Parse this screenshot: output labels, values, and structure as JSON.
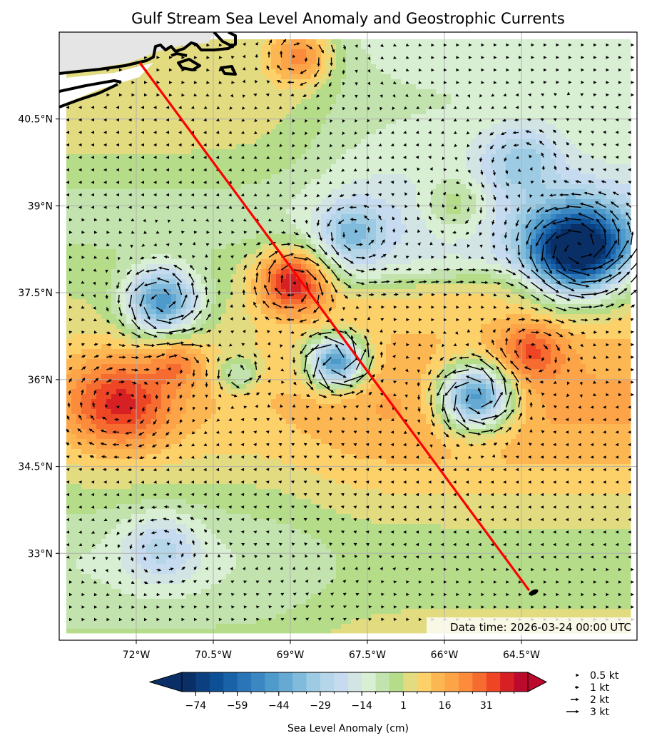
{
  "title": "Gulf Stream Sea Level Anomaly and Geostrophic Currents",
  "data_time_label": "Data time: 2026-03-24 00:00 UTC",
  "chart_data": {
    "type": "contour",
    "title": "Gulf Stream Sea Level Anomaly and Geostrophic Currents",
    "x_ticks": [
      {
        "value": -72,
        "label": "72°W"
      },
      {
        "value": -70.5,
        "label": "70.5°W"
      },
      {
        "value": -69,
        "label": "69°W"
      },
      {
        "value": -67.5,
        "label": "67.5°W"
      },
      {
        "value": -66,
        "label": "66°W"
      },
      {
        "value": -64.5,
        "label": "64.5°W"
      }
    ],
    "y_ticks": [
      {
        "value": 40.5,
        "label": "40.5°N"
      },
      {
        "value": 39,
        "label": "39°N"
      },
      {
        "value": 37.5,
        "label": "37.5°N"
      },
      {
        "value": 36,
        "label": "36°N"
      },
      {
        "value": 34.5,
        "label": "34.5°N"
      },
      {
        "value": 33,
        "label": "33°N"
      }
    ],
    "xlim": [
      -73.5,
      -62.25
    ],
    "ylim": [
      31.5,
      42.0
    ],
    "grid": true,
    "colorbar": {
      "label": "Sea Level Anomaly (cm)",
      "levels_min": -79,
      "levels_step": 5,
      "tick_labels": [
        "−74",
        "−59",
        "−44",
        "−29",
        "−14",
        "1",
        "16",
        "31"
      ],
      "tick_values": [
        -74,
        -59,
        -44,
        -29,
        -14,
        1,
        16,
        31
      ],
      "colors": [
        "#0a2f66",
        "#0b3f80",
        "#0d5096",
        "#1a62a8",
        "#2a74b8",
        "#3a87c2",
        "#4e9acb",
        "#66aad3",
        "#80bbdc",
        "#9ccbe3",
        "#b4d6e8",
        "#c6dbef",
        "#d2e4e4",
        "#d9efd4",
        "#c2e3ad",
        "#b5dc88",
        "#e2db80",
        "#fdd16a",
        "#fdb752",
        "#fca447",
        "#fc8c3c",
        "#f56b30",
        "#ee4524",
        "#d62024",
        "#bb0a2c"
      ],
      "extend": "both"
    },
    "eddies_sla_cm": [
      {
        "lon": -68.95,
        "lat": 37.7,
        "amp": 42,
        "r": 0.55
      },
      {
        "lon": -71.5,
        "lat": 37.35,
        "amp": -48,
        "r": 0.55
      },
      {
        "lon": -68.1,
        "lat": 36.3,
        "amp": -58,
        "r": 0.42
      },
      {
        "lon": -65.4,
        "lat": 35.7,
        "amp": -62,
        "r": 0.55
      },
      {
        "lon": -63.4,
        "lat": 38.2,
        "amp": -80,
        "r": 0.75
      },
      {
        "lon": -72.3,
        "lat": 35.6,
        "amp": 28,
        "r": 0.8
      },
      {
        "lon": -68.8,
        "lat": 41.6,
        "amp": 25,
        "r": 0.5
      },
      {
        "lon": -65.8,
        "lat": 39.0,
        "amp": 16,
        "r": 0.5
      },
      {
        "lon": -67.8,
        "lat": 38.5,
        "amp": -22,
        "r": 0.5
      },
      {
        "lon": -64.5,
        "lat": 39.8,
        "amp": -20,
        "r": 0.6
      },
      {
        "lon": -71.5,
        "lat": 33.1,
        "amp": -18,
        "r": 0.6
      },
      {
        "lon": -70.0,
        "lat": 36.1,
        "amp": -18,
        "r": 0.3
      },
      {
        "lon": -64.3,
        "lat": 36.5,
        "amp": 20,
        "r": 0.5
      },
      {
        "lon": -71.2,
        "lat": 36.3,
        "amp": 15,
        "r": 0.4
      }
    ],
    "track": [
      {
        "lon": -71.93,
        "lat": 41.47
      },
      {
        "lon": -64.35,
        "lat": 32.36
      }
    ],
    "track_color": "#ff0000",
    "quiver_key": [
      {
        "speed_kt": 0.5,
        "label": "0.5 kt"
      },
      {
        "speed_kt": 1,
        "label": "1 kt"
      },
      {
        "speed_kt": 2,
        "label": "2 kt"
      },
      {
        "speed_kt": 3,
        "label": "3 kt"
      }
    ],
    "land_color": "#e5e5e5"
  }
}
